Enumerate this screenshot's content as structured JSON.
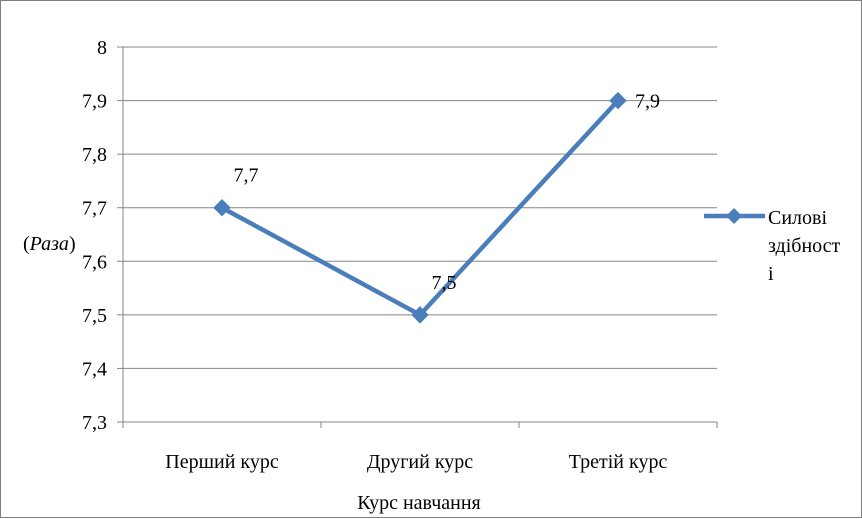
{
  "chart_data": {
    "type": "line",
    "categories": [
      "Перший курс",
      "Другий курс",
      "Третій курс"
    ],
    "series": [
      {
        "name": "Силові здібності",
        "legend_lines": [
          "Силові",
          "здібност",
          "і"
        ],
        "values": [
          7.7,
          7.5,
          7.9
        ],
        "data_labels": [
          "7,7",
          "7,5",
          "7,9"
        ]
      }
    ],
    "title": "",
    "xlabel": "Курс навчання",
    "ylabel_prefix": "(",
    "ylabel_italic": "Раза",
    "ylabel_suffix": ")",
    "ylim": [
      7.3,
      8.0
    ],
    "yticks": [
      7.3,
      7.4,
      7.5,
      7.6,
      7.7,
      7.8,
      7.9,
      8.0
    ],
    "ytick_labels": [
      "7,3",
      "7,4",
      "7,5",
      "7,6",
      "7,7",
      "7,8",
      "7,9",
      "8"
    ],
    "grid": true,
    "legend_position": "right",
    "colors": {
      "series": "#4a7ebb",
      "grid": "#868686",
      "axis": "#868686"
    }
  }
}
